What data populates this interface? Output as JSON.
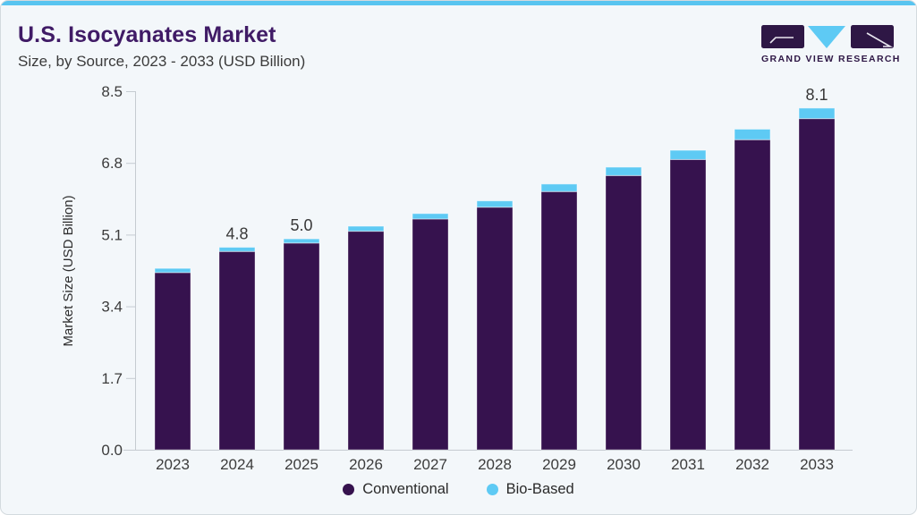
{
  "header": {
    "title": "U.S. Isocyanates Market",
    "subtitle": "Size, by Source, 2023 - 2033 (USD Billion)",
    "brand": "GRAND VIEW RESEARCH"
  },
  "colors": {
    "accent_blue": "#58c4f0",
    "title_purple": "#401b66",
    "logo_purple": "#2e1745",
    "conventional": "#36124e",
    "bio_based": "#5ecaf4",
    "background": "#f3f7fa",
    "axis_line": "#c5cbd1",
    "text_dark": "#3c3c3c"
  },
  "chart_data": {
    "type": "bar",
    "stacked": true,
    "title": "U.S. Isocyanates Market Size, by Source, 2023 - 2033 (USD Billion)",
    "categories": [
      "2023",
      "2024",
      "2025",
      "2026",
      "2027",
      "2028",
      "2029",
      "2030",
      "2031",
      "2032",
      "2033"
    ],
    "series": [
      {
        "name": "Conventional",
        "color": "#36124e",
        "values": [
          4.2,
          4.7,
          4.9,
          5.18,
          5.47,
          5.75,
          6.12,
          6.5,
          6.88,
          7.35,
          7.85
        ]
      },
      {
        "name": "Bio-Based",
        "color": "#5ecaf4",
        "values": [
          0.1,
          0.1,
          0.1,
          0.12,
          0.13,
          0.15,
          0.18,
          0.2,
          0.22,
          0.25,
          0.25
        ]
      }
    ],
    "totals": [
      4.3,
      4.8,
      5.0,
      5.3,
      5.6,
      5.9,
      6.3,
      6.7,
      7.1,
      7.6,
      8.1
    ],
    "bar_labels": {
      "2024": "4.8",
      "2025": "5.0",
      "2033": "8.1"
    },
    "xlabel": "",
    "ylabel": "Market Size (USD Billion)",
    "ylim": [
      0,
      8.5
    ],
    "yticks": [
      "0.0",
      "1.7",
      "3.4",
      "5.1",
      "6.8",
      "8.5"
    ],
    "grid": false,
    "legend_position": "bottom"
  }
}
